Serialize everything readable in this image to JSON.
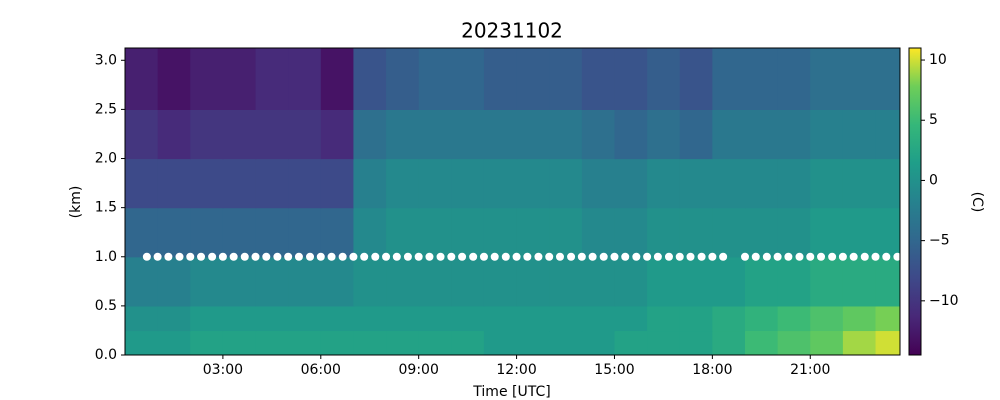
{
  "chart_data": {
    "type": "heatmap",
    "title": "20231102",
    "xlabel": "Time [UTC]",
    "ylabel": "(km)",
    "colorbar_label": "(C)",
    "colormap": "viridis",
    "x_edges": [
      0,
      1,
      2,
      3,
      4,
      5,
      6,
      7,
      8,
      9,
      10,
      11,
      12,
      13,
      14,
      15,
      16,
      17,
      18,
      19,
      20,
      21,
      22,
      23,
      23.75
    ],
    "y_edges": [
      0,
      0.25,
      0.5,
      1,
      1.5,
      2,
      2.5,
      3.125
    ],
    "z": [
      [
        1,
        1,
        2,
        2,
        2,
        2,
        2,
        2,
        2,
        2,
        2,
        1,
        1,
        1,
        1,
        2,
        2,
        2,
        3,
        5,
        6,
        7,
        9,
        10
      ],
      [
        0,
        0,
        1,
        1,
        1,
        1,
        1,
        1,
        1,
        1,
        1,
        1,
        1,
        1,
        1,
        1,
        2,
        2,
        3,
        4,
        5,
        6,
        7,
        8
      ],
      [
        -2,
        -2,
        -1,
        -1,
        -1,
        -1,
        -1,
        0,
        0,
        0,
        0,
        0,
        0,
        0,
        0,
        0,
        1,
        1,
        1,
        2,
        2,
        3,
        3,
        3
      ],
      [
        -5,
        -5,
        -5,
        -5,
        -5,
        -5,
        -5,
        -1,
        0,
        0,
        0,
        0,
        0,
        0,
        -1,
        -1,
        0,
        0,
        0,
        0,
        0,
        1,
        1,
        1
      ],
      [
        -8,
        -8,
        -8,
        -8,
        -8,
        -8,
        -8,
        -2,
        -1,
        -1,
        -1,
        -1,
        -1,
        -1,
        -2,
        -2,
        -1,
        -1,
        -1,
        -1,
        -1,
        0,
        0,
        0
      ],
      [
        -10,
        -11,
        -10,
        -10,
        -10,
        -10,
        -11,
        -4,
        -3,
        -3,
        -3,
        -3,
        -3,
        -3,
        -4,
        -5,
        -4,
        -5,
        -3,
        -3,
        -3,
        -2,
        -2,
        -2
      ],
      [
        -12,
        -13,
        -12,
        -12,
        -11,
        -11,
        -13,
        -7,
        -6,
        -5,
        -5,
        -6,
        -6,
        -6,
        -7,
        -7,
        -6,
        -7,
        -5,
        -5,
        -5,
        -4,
        -4,
        -4
      ]
    ],
    "clim": [
      -14.5,
      11
    ],
    "cticks": [
      {
        "value": -10,
        "label": "−10"
      },
      {
        "value": -5,
        "label": "−5"
      },
      0,
      5,
      10
    ],
    "points": {
      "color": "#ffffff",
      "x": [
        0.67,
        1,
        1.33,
        1.67,
        2,
        2.33,
        2.67,
        3,
        3.33,
        3.67,
        4,
        4.33,
        4.67,
        5,
        5.33,
        5.67,
        6,
        6.33,
        6.67,
        7,
        7.33,
        7.67,
        8,
        8.33,
        8.67,
        9,
        9.33,
        9.67,
        10,
        10.33,
        10.67,
        11,
        11.33,
        11.67,
        12,
        12.33,
        12.67,
        13,
        13.33,
        13.67,
        14,
        14.33,
        14.67,
        15,
        15.33,
        15.67,
        16,
        16.33,
        16.67,
        17,
        17.33,
        17.67,
        18,
        18.33,
        19,
        19.33,
        19.67,
        20,
        20.33,
        20.67,
        21,
        21.33,
        21.67,
        22,
        22.33,
        22.67,
        23,
        23.33,
        23.67
      ],
      "values": [
        1,
        1,
        1,
        1,
        1,
        1,
        1,
        1,
        1,
        1,
        1,
        1,
        1,
        1,
        1,
        1,
        1,
        1,
        1,
        1,
        1,
        1,
        1,
        1,
        1,
        1,
        1,
        1,
        1,
        1,
        1,
        1,
        1,
        1,
        1,
        1,
        1,
        1,
        1,
        1,
        1,
        1,
        1,
        1,
        1,
        1,
        1,
        1,
        1,
        1,
        1,
        1,
        1,
        1,
        1,
        1,
        1,
        1,
        1,
        1,
        1,
        1,
        1,
        1,
        1,
        1,
        1,
        1,
        1
      ]
    },
    "xlim": [
      0,
      23.75
    ],
    "xticks": [
      {
        "value": 3,
        "label": "03:00"
      },
      {
        "value": 6,
        "label": "06:00"
      },
      {
        "value": 9,
        "label": "09:00"
      },
      {
        "value": 12,
        "label": "12:00"
      },
      {
        "value": 15,
        "label": "15:00"
      },
      {
        "value": 18,
        "label": "18:00"
      },
      {
        "value": 21,
        "label": "21:00"
      }
    ],
    "ylim": [
      0,
      3.125
    ],
    "yticks": [
      {
        "value": 0,
        "label": "0.0"
      },
      {
        "value": 0.5,
        "label": "0.5"
      },
      {
        "value": 1,
        "label": "1.0"
      },
      {
        "value": 1.5,
        "label": "1.5"
      },
      {
        "value": 2,
        "label": "2.0"
      },
      {
        "value": 2.5,
        "label": "2.5"
      },
      {
        "value": 3,
        "label": "3.0"
      }
    ]
  }
}
